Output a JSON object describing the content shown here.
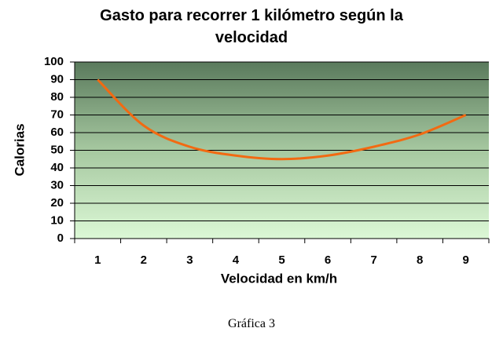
{
  "chart_data": {
    "type": "line",
    "title": "Gasto para recorrer 1 kilómetro según la velocidad",
    "x_label": "Velocidad en km/h",
    "y_label": "Calorias",
    "categories": [
      "1",
      "2",
      "3",
      "4",
      "5",
      "6",
      "7",
      "8",
      "9"
    ],
    "series": [
      {
        "name": "Calorias",
        "color": "#f26a12",
        "values": [
          90,
          64,
          52,
          47,
          45,
          47,
          52,
          59,
          70
        ]
      }
    ],
    "ylim": [
      0,
      100
    ],
    "yticks": [
      0,
      10,
      20,
      30,
      40,
      50,
      60,
      70,
      80,
      90,
      100
    ],
    "grid": true
  },
  "caption": "Gráfica 3"
}
